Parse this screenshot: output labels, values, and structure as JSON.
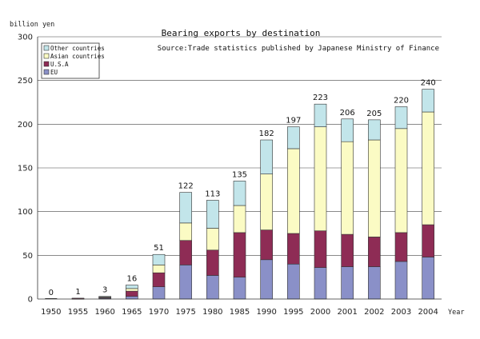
{
  "chart_data": {
    "type": "bar",
    "stacked": true,
    "title": "Bearing exports by destination",
    "source": "Source:Trade statistics published by Japanese Ministry of Finance",
    "ylabel": "billion yen",
    "xlabel": "Year",
    "ylim": [
      0,
      300
    ],
    "yticks": [
      0,
      50,
      100,
      150,
      200,
      250,
      300
    ],
    "grid": true,
    "legend_position": "top-left",
    "categories": [
      "1950",
      "1955",
      "1960",
      "1965",
      "1970",
      "1975",
      "1980",
      "1985",
      "1990",
      "1995",
      "2000",
      "2001",
      "2002",
      "2003",
      "2004"
    ],
    "totals": [
      0,
      1,
      3,
      16,
      51,
      122,
      113,
      135,
      182,
      197,
      223,
      206,
      205,
      220,
      240
    ],
    "series": [
      {
        "name": "EU",
        "color": "#8a90c8",
        "values": [
          0,
          0.5,
          1,
          3,
          14,
          39,
          27,
          25,
          45,
          40,
          36,
          37,
          37,
          43,
          48
        ]
      },
      {
        "name": "U.S.A",
        "color": "#8e2c55",
        "values": [
          0,
          0.5,
          1,
          6,
          16,
          28,
          29,
          51,
          34,
          35,
          42,
          37,
          34,
          33,
          37
        ]
      },
      {
        "name": "Asian countries",
        "color": "#fbfbc4",
        "values": [
          0,
          0,
          0.5,
          3,
          9,
          20,
          25,
          31,
          64,
          97,
          119,
          106,
          111,
          119,
          129
        ]
      },
      {
        "name": "Other countries",
        "color": "#c2e5ea",
        "values": [
          0,
          0,
          0.5,
          4,
          12,
          35,
          32,
          28,
          39,
          25,
          26,
          26,
          23,
          25,
          26
        ]
      }
    ]
  }
}
